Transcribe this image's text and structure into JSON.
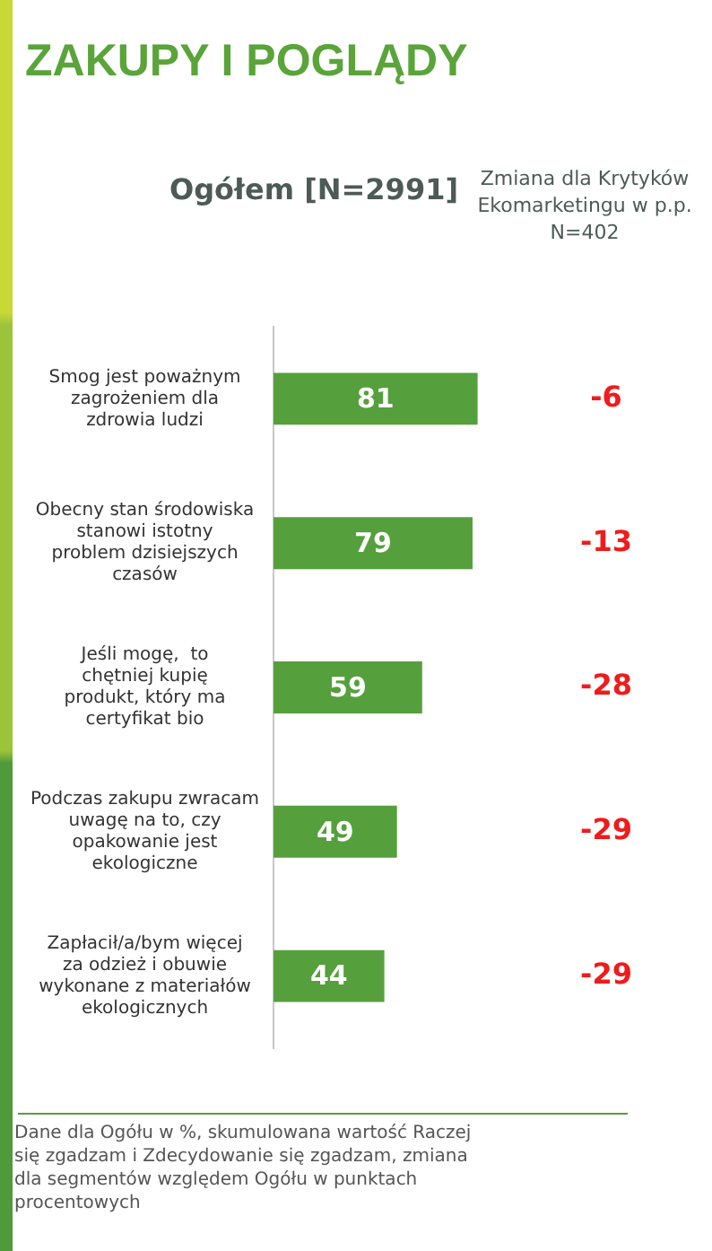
{
  "chart_data": {
    "type": "bar",
    "orientation": "horizontal",
    "title": "ZAKUPY I POGLĄDY",
    "categories": [
      "Smog jest poważnym zagrożeniem dla zdrowia ludzi",
      "Obecny stan środowiska stanowi istotny problem dzisiejszych czasów",
      "Jeśli mogę,  to chętniej kupię produkt, który ma certyfikat bio",
      "Podczas zakupu zwracam uwagę na to, czy opakowanie jest ekologiczne",
      "Zapłacił/a/bym więcej za odzież i obuwie wykonane z materiałów ekologicznych"
    ],
    "series": [
      {
        "name": "Ogółem [N=2991]",
        "color": "#55a03c",
        "values": [
          81,
          79,
          59,
          49,
          44
        ]
      }
    ],
    "tick_labels": "y",
    "data_labels": true,
    "legend": false,
    "annotations": [
      "Zmiana dla Krytyków Ekomarketingu w p.p. N=402",
      "-6",
      "-13",
      "-28",
      "-29",
      "-29",
      "Dane dla Ogółu w %, skumulowana wartość  Raczej się zgadzam  i Zdecydowanie się zgadzam, zmiana dla segmentów względem Ogółu w punktach procentowych"
    ]
  }
}
